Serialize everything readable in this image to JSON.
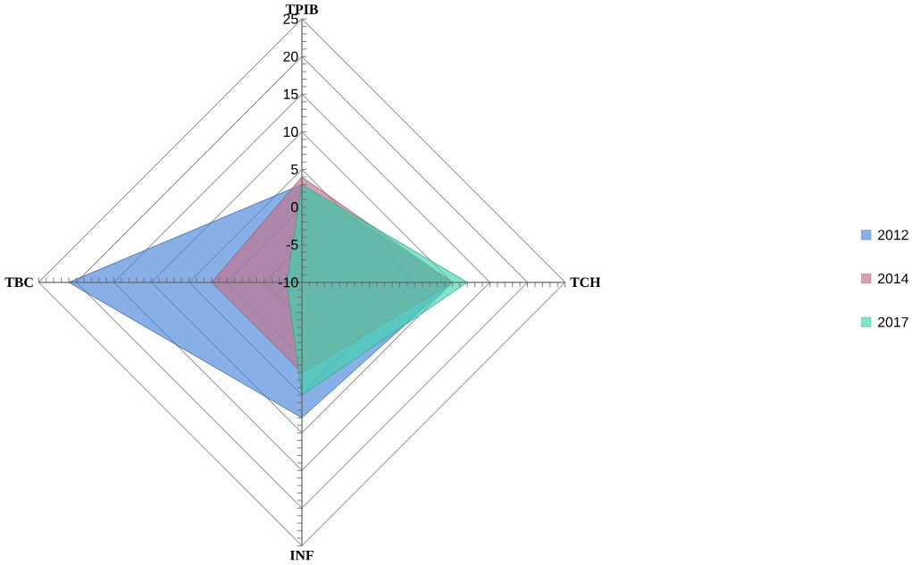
{
  "chart_data": {
    "type": "radar",
    "categories": [
      "TPIB",
      "TCH",
      "INF",
      "TBC"
    ],
    "series": [
      {
        "name": "2012",
        "color": "#4a86d8",
        "values": [
          3,
          10,
          8,
          21
        ]
      },
      {
        "name": "2014",
        "color": "#c0708a",
        "values": [
          4,
          10,
          2,
          2
        ]
      },
      {
        "name": "2017",
        "color": "#3fd4ac",
        "values": [
          3,
          12,
          5,
          -8
        ]
      }
    ],
    "ylim": [
      -10,
      25
    ],
    "yticks": [
      -10,
      -5,
      0,
      5,
      10,
      15,
      20,
      25
    ],
    "grid": true,
    "legend": "right"
  }
}
